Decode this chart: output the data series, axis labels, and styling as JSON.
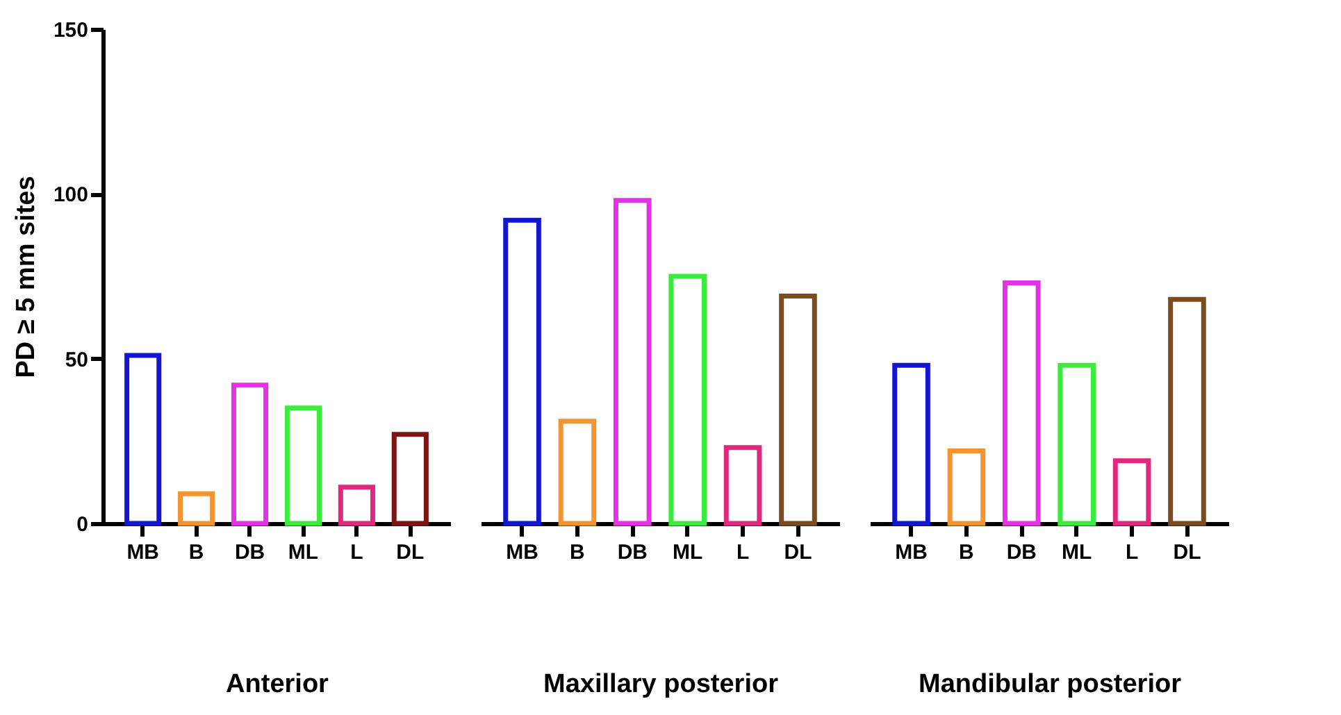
{
  "chart_data": [
    {
      "type": "bar",
      "ylabel": "PD ≥ 5 mm sites",
      "xlabel": "Anterior",
      "categories": [
        "MB",
        "B",
        "DB",
        "ML",
        "L",
        "DL"
      ],
      "values": [
        51,
        9,
        42,
        35,
        11,
        27
      ],
      "colors": [
        "#1414d2",
        "#f39332",
        "#e632e6",
        "#3cec3c",
        "#e0287c",
        "#7c1414"
      ],
      "ylim": [
        0,
        150
      ],
      "yticks": [
        0,
        50,
        100,
        150
      ]
    },
    {
      "type": "bar",
      "xlabel": "Maxillary posterior",
      "categories": [
        "MB",
        "B",
        "DB",
        "ML",
        "L",
        "DL"
      ],
      "values": [
        92,
        31,
        98,
        75,
        23,
        69
      ],
      "colors": [
        "#1414d2",
        "#f39332",
        "#e632e6",
        "#3cec3c",
        "#e0287c",
        "#7c4c1e"
      ],
      "ylim": [
        0,
        150
      ],
      "yticks": [
        0,
        50,
        100,
        150
      ],
      "tick_labels": "x"
    },
    {
      "type": "bar",
      "xlabel": "Mandibular posterior",
      "categories": [
        "MB",
        "B",
        "DB",
        "ML",
        "L",
        "DL"
      ],
      "values": [
        48,
        22,
        73,
        48,
        19,
        68
      ],
      "colors": [
        "#1414d2",
        "#f39332",
        "#e632e6",
        "#3cec3c",
        "#e0287c",
        "#7c4c1e"
      ],
      "ylim": [
        0,
        150
      ],
      "yticks": [
        0,
        50,
        100,
        150
      ],
      "tick_labels": "x"
    }
  ]
}
